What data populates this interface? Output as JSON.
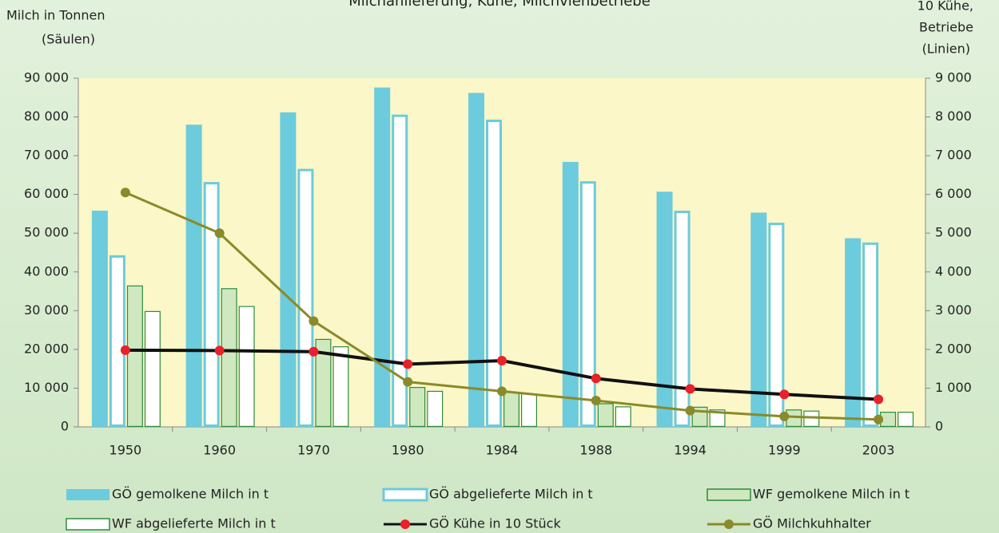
{
  "chart_data": {
    "type": "bar",
    "title": "Milchanlieferung, Kühe, Milchviehbetriebe",
    "y_label": [
      "Milch in Tonnen",
      "(Säulen)"
    ],
    "y2_label": [
      "10 Kühe,",
      "Betriebe",
      "(Linien)"
    ],
    "categories": [
      "1950",
      "1960",
      "1970",
      "1980",
      "1984",
      "1988",
      "1994",
      "1999",
      "2003"
    ],
    "ylim": [
      0,
      90000
    ],
    "yticks": [
      0,
      {
        "value": 10000,
        "label": "10 000"
      },
      {
        "value": 20000,
        "label": "20 000"
      },
      {
        "value": 30000,
        "label": "30 000"
      },
      {
        "value": 40000,
        "label": "40 000"
      },
      {
        "value": 50000,
        "label": "50 000"
      },
      {
        "value": 60000,
        "label": "60 000"
      },
      {
        "value": 70000,
        "label": "70 000"
      },
      {
        "value": 80000,
        "label": "80 000"
      },
      {
        "value": 90000,
        "label": "90 000"
      }
    ],
    "y2lim": [
      0,
      9000
    ],
    "y2ticks": [
      0,
      {
        "value": 1000,
        "label": "1 000"
      },
      {
        "value": 2000,
        "label": "2 000"
      },
      {
        "value": 3000,
        "label": "3 000"
      },
      {
        "value": 4000,
        "label": "4 000"
      },
      {
        "value": 5000,
        "label": "5 000"
      },
      {
        "value": 6000,
        "label": "6 000"
      },
      {
        "value": 7000,
        "label": "7 000"
      },
      {
        "value": 8000,
        "label": "8 000"
      },
      {
        "value": 9000,
        "label": "9 000"
      }
    ],
    "grid": false,
    "legend": "bottom",
    "series": [
      {
        "name": "GÖ gemolkene Milch in t",
        "type": "bar",
        "color": "#6ccbdc",
        "fill": "#6ccbdc",
        "values": [
          55800,
          78000,
          81200,
          87600,
          86200,
          68400,
          60700,
          55300,
          48700
        ]
      },
      {
        "name": "GÖ abgelieferte Milch in t",
        "type": "bar",
        "color": "#6ccbdc",
        "fill": "#ffffff",
        "values": [
          44300,
          63200,
          66600,
          80600,
          79300,
          63400,
          55800,
          52700,
          47600
        ]
      },
      {
        "name": "WF gemolkene Milch in t",
        "type": "bar",
        "color": "#2e8b3c",
        "fill": "#cfe8c0",
        "values": [
          36500,
          35800,
          22700,
          10300,
          9000,
          6100,
          5200,
          4500,
          3900
        ]
      },
      {
        "name": "WF abgelieferte Milch in t",
        "type": "bar",
        "color": "#2e8b3c",
        "fill": "#ffffff",
        "values": [
          29900,
          31200,
          20800,
          9300,
          8600,
          5300,
          4500,
          4200,
          3900
        ]
      },
      {
        "name": "GÖ Kühe in 10 Stück",
        "type": "line",
        "axis": "y2",
        "color": "#111111",
        "marker": "#e8212b",
        "values": [
          1980,
          1970,
          1940,
          1620,
          1710,
          1250,
          980,
          840,
          710
        ]
      },
      {
        "name": "GÖ Milchkuhhalter",
        "type": "line",
        "axis": "y2",
        "color": "#8a8a2a",
        "marker": "#8a8a2a",
        "values": [
          6050,
          5000,
          2730,
          1160,
          920,
          680,
          420,
          270,
          190
        ]
      }
    ]
  }
}
